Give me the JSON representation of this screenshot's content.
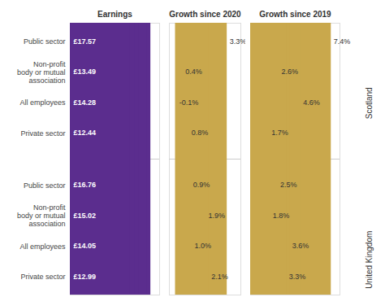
{
  "chart_data": [
    {
      "type": "bar",
      "orientation": "horizontal",
      "title": "Earnings",
      "categories": [
        "Public sector",
        "Non-profit\nbody or mutual\nassociation",
        "All employees",
        "Private sector",
        "Public sector",
        "Non-profit\nbody or mutual\nassociation",
        "All employees",
        "Private sector"
      ],
      "values": [
        17.57,
        13.49,
        14.28,
        12.44,
        16.76,
        15.02,
        14.05,
        12.99
      ],
      "value_labels": [
        "£17.57",
        "£13.49",
        "£14.28",
        "£12.44",
        "£16.76",
        "£15.02",
        "£14.05",
        "£12.99"
      ],
      "color": "#5b2d8e",
      "xlim": [
        0,
        19.5
      ],
      "data_labels": true,
      "tick_labels": false
    },
    {
      "type": "bar",
      "orientation": "horizontal",
      "title": "Growth since 2020",
      "categories": [
        "Public sector",
        "Non-profit\nbody or mutual\nassociation",
        "All employees",
        "Private sector",
        "Public sector",
        "Non-profit\nbody or mutual\nassociation",
        "All employees",
        "Private sector"
      ],
      "values": [
        3.3,
        0.4,
        -0.1,
        0.8,
        0.9,
        1.9,
        1.0,
        2.1
      ],
      "value_labels": [
        "3.3%",
        "0.4%",
        "-0.1%",
        "0.8%",
        "0.9%",
        "1.9%",
        "1.0%",
        "2.1%"
      ],
      "color": "#c9a84c",
      "xlim": [
        -0.5,
        4.2
      ],
      "data_labels": true,
      "tick_labels": false
    },
    {
      "type": "bar",
      "orientation": "horizontal",
      "title": "Growth since 2019",
      "categories": [
        "Public sector",
        "Non-profit\nbody or mutual\nassociation",
        "All employees",
        "Private sector",
        "Public sector",
        "Non-profit\nbody or mutual\nassociation",
        "All employees",
        "Private sector"
      ],
      "values": [
        7.4,
        2.6,
        4.6,
        1.7,
        2.5,
        1.8,
        3.6,
        3.3
      ],
      "value_labels": [
        "7.4%",
        "2.6%",
        "4.6%",
        "1.7%",
        "2.5%",
        "1.8%",
        "3.6%",
        "3.3%"
      ],
      "color": "#c9a84c",
      "xlim": [
        0,
        8.2
      ],
      "data_labels": true,
      "tick_labels": false,
      "annotations": [
        "Scotland",
        "United Kingdom"
      ]
    }
  ]
}
